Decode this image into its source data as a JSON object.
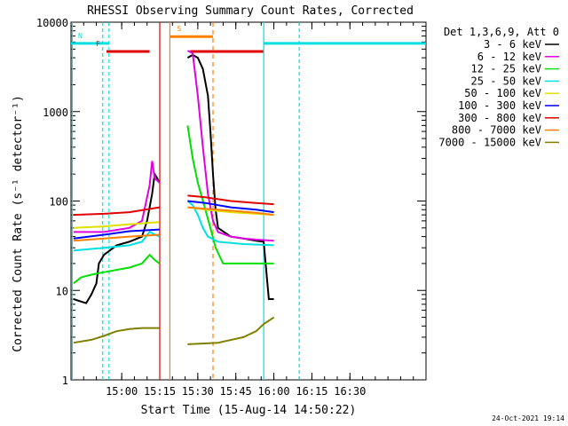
{
  "chart_data": {
    "type": "line",
    "title": "RHESSI Observing Summary Count Rates, Corrected",
    "xlabel": "Start Time (15-Aug-14 14:50:22)",
    "ylabel": "Corrected Count Rate (s⁻¹ detector⁻¹)",
    "y_scale": "log",
    "xlim_min": [
      -8,
      132
    ],
    "ylim": [
      1,
      10000
    ],
    "x_ticks": [
      {
        "t": 12,
        "label": "15:00"
      },
      {
        "t": 27,
        "label": "15:15"
      },
      {
        "t": 42,
        "label": "15:30"
      },
      {
        "t": 57,
        "label": "15:45"
      },
      {
        "t": 72,
        "label": "16:00"
      },
      {
        "t": 87,
        "label": "16:15"
      },
      {
        "t": 102,
        "label": "16:30"
      }
    ],
    "y_ticks": [
      {
        "v": 1,
        "label": "1"
      },
      {
        "v": 10,
        "label": "10"
      },
      {
        "v": 100,
        "label": "100"
      },
      {
        "v": 1000,
        "label": "1000"
      },
      {
        "v": 10000,
        "label": "10000"
      }
    ],
    "legend_title": "Det 1,3,6,9, Att 0",
    "legend_position": "right",
    "series": [
      {
        "name": "3 - 6 keV",
        "color": "#000000",
        "segments": [
          [
            [
              -7,
              8
            ],
            [
              -4,
              7.5
            ],
            [
              -2,
              7.2
            ],
            [
              0,
              9
            ],
            [
              2,
              12
            ],
            [
              3,
              20
            ],
            [
              5,
              25
            ],
            [
              10,
              32
            ],
            [
              15,
              35
            ],
            [
              20,
              40
            ],
            [
              22,
              60
            ],
            [
              24,
              120
            ],
            [
              25,
              200
            ],
            [
              26,
              180
            ],
            [
              26.9,
              160
            ]
          ],
          [
            [
              38,
              4000
            ],
            [
              40,
              4300
            ],
            [
              42,
              4000
            ],
            [
              44,
              3000
            ],
            [
              46,
              1500
            ],
            [
              47,
              600
            ],
            [
              48,
              200
            ],
            [
              49,
              80
            ],
            [
              50,
              50
            ],
            [
              55,
              40
            ],
            [
              60,
              38
            ],
            [
              65,
              36
            ],
            [
              68,
              35
            ],
            [
              70,
              8
            ],
            [
              72,
              8
            ]
          ]
        ]
      },
      {
        "name": "6 - 12 keV",
        "color": "#e000e0",
        "segments": [
          [
            [
              -7,
              45
            ],
            [
              5,
              45
            ],
            [
              15,
              50
            ],
            [
              20,
              60
            ],
            [
              23,
              150
            ],
            [
              24,
              280
            ],
            [
              25,
              180
            ],
            [
              26.9,
              160
            ]
          ],
          [
            [
              38,
              4800
            ],
            [
              40,
              4500
            ],
            [
              42,
              1500
            ],
            [
              44,
              400
            ],
            [
              46,
              120
            ],
            [
              48,
              60
            ],
            [
              50,
              45
            ],
            [
              55,
              40
            ],
            [
              60,
              38
            ],
            [
              65,
              37
            ],
            [
              72,
              36
            ]
          ]
        ]
      },
      {
        "name": "12 - 25 keV",
        "color": "#00e000",
        "segments": [
          [
            [
              -7,
              12
            ],
            [
              -4,
              14
            ],
            [
              0,
              15
            ],
            [
              5,
              16
            ],
            [
              15,
              18
            ],
            [
              20,
              20
            ],
            [
              23,
              25
            ],
            [
              25,
              22
            ],
            [
              26.9,
              20
            ]
          ],
          [
            [
              38,
              700
            ],
            [
              40,
              300
            ],
            [
              42,
              160
            ],
            [
              45,
              80
            ],
            [
              47,
              50
            ],
            [
              49,
              30
            ],
            [
              52,
              20
            ],
            [
              55,
              20
            ],
            [
              60,
              20
            ],
            [
              72,
              20
            ]
          ]
        ]
      },
      {
        "name": "25 - 50 keV",
        "color": "#00e0e0",
        "segments": [
          [
            [
              -7,
              28
            ],
            [
              5,
              30
            ],
            [
              15,
              32
            ],
            [
              20,
              35
            ],
            [
              23,
              45
            ],
            [
              26.9,
              40
            ]
          ],
          [
            [
              38,
              100
            ],
            [
              40,
              90
            ],
            [
              42,
              70
            ],
            [
              44,
              50
            ],
            [
              46,
              40
            ],
            [
              50,
              35
            ],
            [
              60,
              33
            ],
            [
              72,
              32
            ]
          ]
        ]
      },
      {
        "name": "50 - 100 keV",
        "color": "#e0e000",
        "segments": [
          [
            [
              -7,
              50
            ],
            [
              5,
              52
            ],
            [
              15,
              55
            ],
            [
              26.9,
              58
            ]
          ],
          [
            [
              38,
              85
            ],
            [
              45,
              80
            ],
            [
              55,
              75
            ],
            [
              65,
              72
            ],
            [
              72,
              70
            ]
          ]
        ]
      },
      {
        "name": "100 - 300 keV",
        "color": "#0000ff",
        "segments": [
          [
            [
              -7,
              38
            ],
            [
              5,
              42
            ],
            [
              15,
              46
            ],
            [
              26.9,
              48
            ]
          ],
          [
            [
              38,
              100
            ],
            [
              45,
              95
            ],
            [
              55,
              85
            ],
            [
              65,
              80
            ],
            [
              72,
              75
            ]
          ]
        ]
      },
      {
        "name": "300 - 800 keV",
        "color": "#e00000",
        "segments": [
          [
            [
              -7,
              70
            ],
            [
              5,
              72
            ],
            [
              15,
              75
            ],
            [
              26.9,
              85
            ]
          ],
          [
            [
              38,
              115
            ],
            [
              45,
              110
            ],
            [
              55,
              100
            ],
            [
              65,
              95
            ],
            [
              72,
              92
            ]
          ]
        ]
      },
      {
        "name": "800 - 7000 keV",
        "color": "#ff8000",
        "segments": [
          [
            [
              -7,
              36
            ],
            [
              5,
              38
            ],
            [
              15,
              40
            ],
            [
              26.9,
              42
            ]
          ],
          [
            [
              38,
              85
            ],
            [
              45,
              82
            ],
            [
              55,
              78
            ],
            [
              65,
              74
            ],
            [
              72,
              70
            ]
          ]
        ]
      },
      {
        "name": "7000 - 15000 keV",
        "color": "#808000",
        "segments": [
          [
            [
              -7,
              2.6
            ],
            [
              0,
              2.8
            ],
            [
              5,
              3.1
            ],
            [
              10,
              3.5
            ],
            [
              15,
              3.7
            ],
            [
              20,
              3.8
            ],
            [
              26.9,
              3.8
            ]
          ],
          [
            [
              38,
              2.5
            ],
            [
              50,
              2.6
            ],
            [
              60,
              3.0
            ],
            [
              65,
              3.5
            ],
            [
              68,
              4.2
            ],
            [
              72,
              5.0
            ]
          ]
        ]
      }
    ],
    "flags": [
      {
        "letter": "N",
        "color": "#00e0e0",
        "t_start": -8,
        "t_end": 7,
        "t_start2": 68,
        "t_end2": 132,
        "level": 5800
      },
      {
        "letter": "F",
        "color": "#e00000",
        "t_start": 6,
        "t_end": 23,
        "t_start2": 39,
        "t_end2": 68,
        "level": 4700
      },
      {
        "letter": "S",
        "color": "#ff8000",
        "t_start": 31,
        "t_end": 48,
        "level": 6900
      }
    ],
    "flag_letters": [
      "N",
      "F",
      "S"
    ],
    "timestamp": "24-Oct-2021 19:14"
  }
}
